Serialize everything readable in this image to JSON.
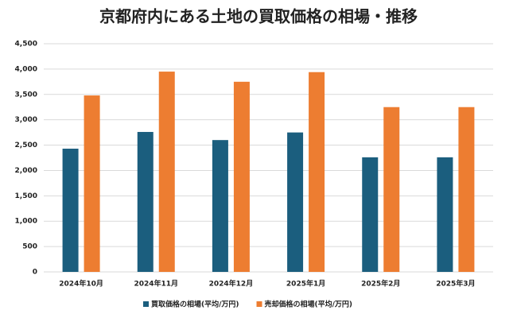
{
  "chart_data": {
    "type": "bar",
    "title": "京都府内にある土地の買取価格の相場・推移",
    "categories": [
      "2024年10月",
      "2024年11月",
      "2024年12月",
      "2025年1月",
      "2025年2月",
      "2025年3月"
    ],
    "series": [
      {
        "name": "買取価格の相場(平均/万円)",
        "color": "#1b5e7e",
        "values": [
          2430,
          2760,
          2600,
          2750,
          2260,
          2260
        ]
      },
      {
        "name": "売却価格の相場(平均/万円)",
        "color": "#ed7d31",
        "values": [
          3480,
          3950,
          3750,
          3940,
          3250,
          3250
        ]
      }
    ],
    "ylim": [
      0,
      4500
    ],
    "yticks": [
      0,
      500,
      {
        "value": 1000,
        "label": "1,000"
      },
      {
        "value": 1500,
        "label": "1,500"
      },
      {
        "value": 2000,
        "label": "2,000"
      },
      {
        "value": 2500,
        "label": "2,500"
      },
      {
        "value": 3000,
        "label": "3,000"
      },
      {
        "value": 3500,
        "label": "3,500"
      },
      {
        "value": 4000,
        "label": "4,000"
      },
      {
        "value": 4500,
        "label": "4,500"
      }
    ],
    "grid": true,
    "legend": "bottom"
  }
}
